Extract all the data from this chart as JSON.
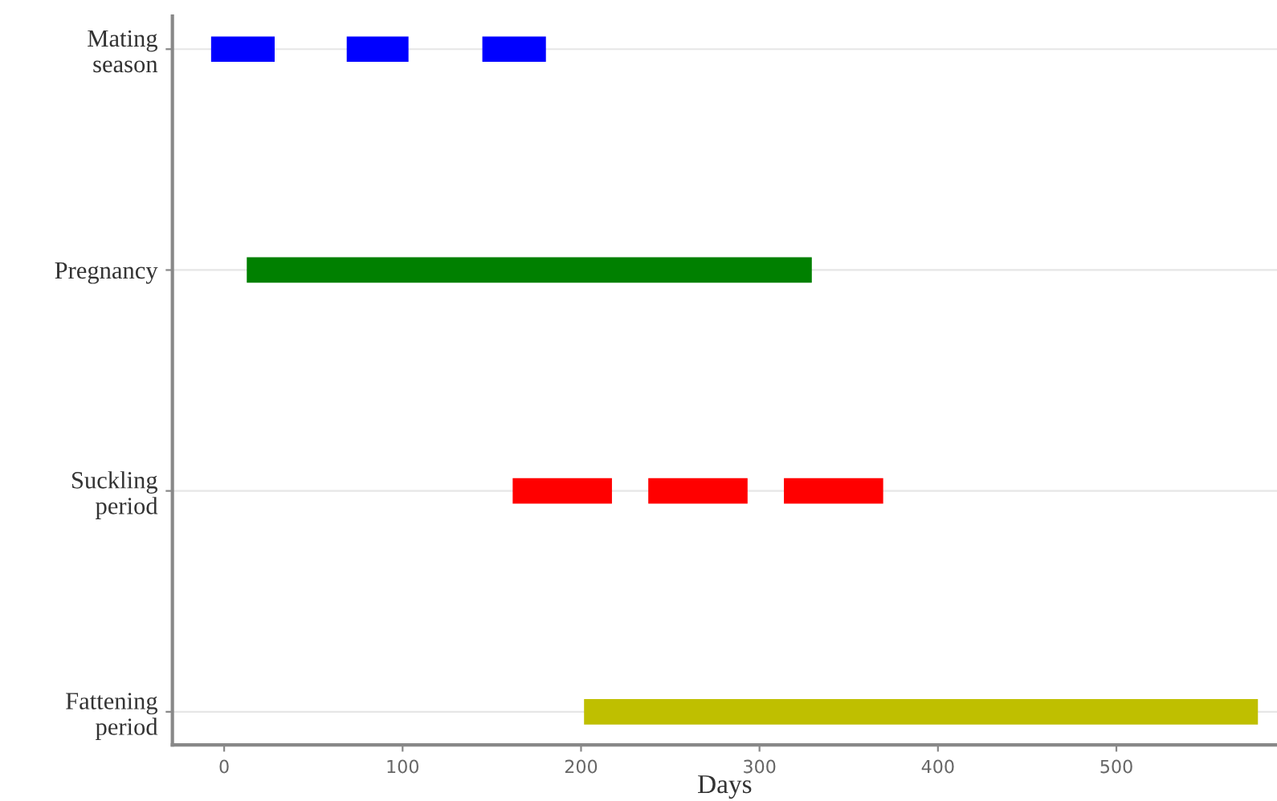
{
  "chart_data": {
    "type": "bar",
    "orientation": "horizontal",
    "xlabel": "Days",
    "categories": [
      "Mating\nseason",
      "Pregnancy",
      "Suckling\nperiod",
      "Fattening\nperiod"
    ],
    "series": [
      {
        "colors": [
          "#0000ff",
          "#008000",
          "#ff0000",
          "#bfbf00"
        ],
        "base": [
          -7,
          13,
          162,
          202
        ],
        "values": [
          35,
          316,
          55,
          377
        ]
      },
      {
        "colors": [
          "#0000ff",
          null,
          "#ff0000",
          null
        ],
        "base": [
          69,
          null,
          238,
          null
        ],
        "values": [
          34,
          null,
          55,
          null
        ]
      },
      {
        "colors": [
          "#0000ff",
          null,
          "#ff0000",
          null
        ],
        "base": [
          145,
          null,
          314,
          null
        ],
        "values": [
          35,
          null,
          55,
          null
        ]
      }
    ],
    "xlim": [
      -29,
      590
    ],
    "xticks": [
      0,
      100,
      200,
      300,
      400,
      500
    ],
    "grid": "y",
    "legend": false
  }
}
